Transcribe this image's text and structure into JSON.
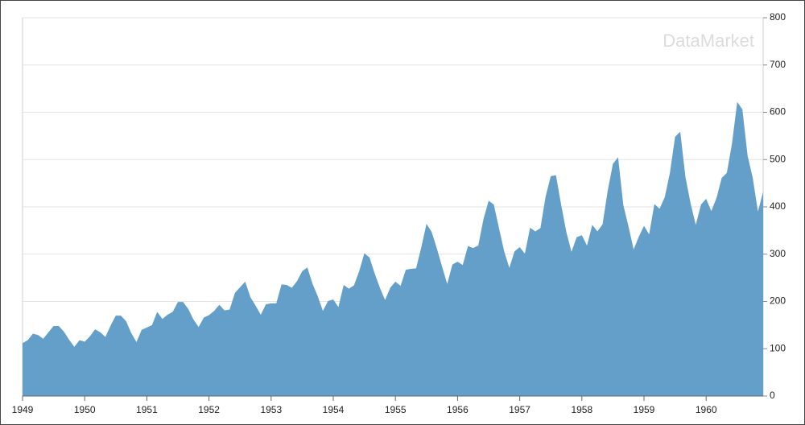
{
  "chart_data": {
    "type": "area",
    "watermark": "DataMarket",
    "color": "#649fca",
    "grid": true,
    "x": [
      1949,
      1949.083,
      1949.167,
      1949.25,
      1949.333,
      1949.417,
      1949.5,
      1949.583,
      1949.667,
      1949.75,
      1949.833,
      1949.917,
      1950,
      1950.083,
      1950.167,
      1950.25,
      1950.333,
      1950.417,
      1950.5,
      1950.583,
      1950.667,
      1950.75,
      1950.833,
      1950.917,
      1951,
      1951.083,
      1951.167,
      1951.25,
      1951.333,
      1951.417,
      1951.5,
      1951.583,
      1951.667,
      1951.75,
      1951.833,
      1951.917,
      1952,
      1952.083,
      1952.167,
      1952.25,
      1952.333,
      1952.417,
      1952.5,
      1952.583,
      1952.667,
      1952.75,
      1952.833,
      1952.917,
      1953,
      1953.083,
      1953.167,
      1953.25,
      1953.333,
      1953.417,
      1953.5,
      1953.583,
      1953.667,
      1953.75,
      1953.833,
      1953.917,
      1954,
      1954.083,
      1954.167,
      1954.25,
      1954.333,
      1954.417,
      1954.5,
      1954.583,
      1954.667,
      1954.75,
      1954.833,
      1954.917,
      1955,
      1955.083,
      1955.167,
      1955.25,
      1955.333,
      1955.417,
      1955.5,
      1955.583,
      1955.667,
      1955.75,
      1955.833,
      1955.917,
      1956,
      1956.083,
      1956.167,
      1956.25,
      1956.333,
      1956.417,
      1956.5,
      1956.583,
      1956.667,
      1956.75,
      1956.833,
      1956.917,
      1957,
      1957.083,
      1957.167,
      1957.25,
      1957.333,
      1957.417,
      1957.5,
      1957.583,
      1957.667,
      1957.75,
      1957.833,
      1957.917,
      1958,
      1958.083,
      1958.167,
      1958.25,
      1958.333,
      1958.417,
      1958.5,
      1958.583,
      1958.667,
      1958.75,
      1958.833,
      1958.917,
      1959,
      1959.083,
      1959.167,
      1959.25,
      1959.333,
      1959.417,
      1959.5,
      1959.583,
      1959.667,
      1959.75,
      1959.833,
      1959.917,
      1960,
      1960.083,
      1960.167,
      1960.25,
      1960.333,
      1960.417,
      1960.5,
      1960.583,
      1960.667,
      1960.75,
      1960.833,
      1960.917
    ],
    "values": [
      112,
      118,
      132,
      129,
      121,
      135,
      148,
      148,
      136,
      119,
      104,
      118,
      115,
      126,
      141,
      135,
      125,
      149,
      170,
      170,
      158,
      133,
      114,
      140,
      145,
      150,
      178,
      163,
      172,
      178,
      199,
      199,
      184,
      162,
      146,
      166,
      171,
      180,
      193,
      181,
      183,
      218,
      230,
      242,
      209,
      191,
      172,
      194,
      196,
      196,
      236,
      235,
      229,
      243,
      264,
      272,
      237,
      211,
      180,
      201,
      204,
      188,
      235,
      227,
      234,
      264,
      302,
      293,
      259,
      229,
      203,
      229,
      242,
      233,
      267,
      269,
      270,
      315,
      364,
      347,
      312,
      274,
      237,
      278,
      284,
      277,
      317,
      313,
      318,
      374,
      413,
      405,
      355,
      306,
      271,
      306,
      315,
      301,
      356,
      348,
      355,
      422,
      465,
      467,
      404,
      347,
      305,
      336,
      340,
      318,
      362,
      348,
      363,
      435,
      491,
      505,
      404,
      359,
      310,
      337,
      360,
      342,
      406,
      396,
      420,
      472,
      548,
      559,
      463,
      407,
      362,
      405,
      417,
      391,
      419,
      461,
      472,
      535,
      622,
      606,
      508,
      461,
      390,
      432
    ],
    "xlim": [
      1949,
      1960.917
    ],
    "xticks": [
      1949,
      1950,
      1951,
      1952,
      1953,
      1954,
      1955,
      1956,
      1957,
      1958,
      1959,
      1960
    ],
    "ylim": [
      0,
      800
    ],
    "yticks": [
      0,
      100,
      200,
      300,
      400,
      500,
      600,
      700,
      800
    ]
  }
}
